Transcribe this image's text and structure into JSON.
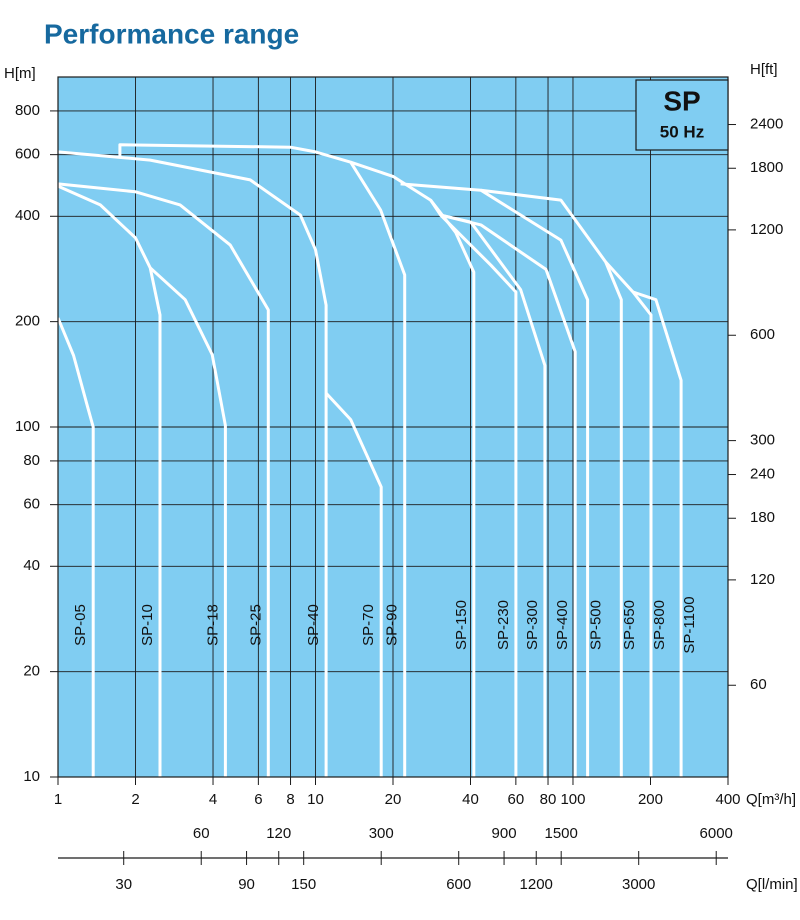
{
  "chart_data": {
    "type": "line",
    "title": "Performance range",
    "badge": {
      "title": "SP",
      "subtitle": "50 Hz"
    },
    "xlabel": "Q[m³/h]",
    "ylabel": "H[m]",
    "y2label": "H[ft]",
    "x2label": "Q[l/min]",
    "xscale": "log",
    "yscale": "log",
    "grid": true,
    "color": "#ffffff",
    "xlim": [
      1,
      400
    ],
    "xticks": [
      1,
      2,
      4,
      6,
      8,
      10,
      20,
      40,
      60,
      80,
      100,
      200,
      400
    ],
    "ylim": [
      10,
      1000
    ],
    "yticks": [
      10,
      20,
      40,
      60,
      80,
      100,
      200,
      400,
      600,
      800
    ],
    "y2lim": [
      32.81,
      3281
    ],
    "y2ticks": [
      60,
      120,
      180,
      240,
      300,
      600,
      1200,
      1800,
      2400
    ],
    "x2lim": [
      16.67,
      6667
    ],
    "x2ticks": [
      30,
      60,
      90,
      120,
      150,
      300,
      600,
      900,
      1200,
      1500,
      3000,
      6000
    ],
    "series": [
      {
        "name": "SP-05",
        "x": [
          1,
          1.15,
          1.3,
          1.37,
          1.37
        ],
        "values": [
          205,
          160,
          115,
          100,
          10
        ]
      },
      {
        "name": "SP-10",
        "x": [
          1,
          1.46,
          2,
          2.28,
          2.49,
          2.49
        ],
        "values": [
          488,
          431,
          347,
          285,
          209,
          10
        ]
      },
      {
        "name": "SP-18",
        "x": [
          2.28,
          3.12,
          3.97,
          4.47,
          4.47
        ],
        "values": [
          285,
          231,
          161,
          101,
          10
        ]
      },
      {
        "name": "SP-25",
        "x": [
          1,
          2,
          2.98,
          4.67,
          6.56,
          6.56
        ],
        "values": [
          495,
          470,
          431,
          331,
          216,
          10
        ]
      },
      {
        "name": "SP-40",
        "x": [
          1,
          2.28,
          5.58,
          8.74,
          10,
          11,
          11
        ],
        "values": [
          611,
          579,
          508,
          403,
          321,
          223,
          10
        ]
      },
      {
        "name": "SP-70",
        "x": [
          11,
          13.7,
          18,
          18
        ],
        "values": [
          125,
          105,
          67.4,
          10
        ]
      },
      {
        "name": "SP-90",
        "x": [
          1.74,
          1.74,
          8,
          10,
          13.7,
          17.9,
          22.2,
          22.2
        ],
        "values": [
          590,
          640,
          630,
          611,
          571,
          417,
          272,
          10
        ]
      },
      {
        "name": "SP-150",
        "x": [
          13.7,
          20,
          28,
          35,
          41.2,
          41.2
        ],
        "values": [
          571,
          520,
          445,
          360,
          277,
          10
        ]
      },
      {
        "name": "SP-230",
        "x": [
          28,
          30.6,
          48,
          60,
          60
        ],
        "values": [
          445,
          403,
          290,
          243,
          10
        ]
      },
      {
        "name": "SP-300",
        "x": [
          30.6,
          40.1,
          62.6,
          77.8,
          77.8
        ],
        "values": [
          403,
          385,
          247,
          150,
          10
        ]
      },
      {
        "name": "SP-400",
        "x": [
          30.6,
          43.9,
          78.6,
          102,
          102
        ],
        "values": [
          403,
          378,
          282,
          164,
          10
        ]
      },
      {
        "name": "SP-500",
        "x": [
          21.4,
          43.9,
          89.8,
          114,
          114
        ],
        "values": [
          495,
          475,
          342,
          231,
          10
        ]
      },
      {
        "name": "SP-650",
        "x": [
          43.9,
          89.8,
          134,
          154,
          154
        ],
        "values": [
          475,
          445,
          296,
          231,
          10
        ]
      },
      {
        "name": "SP-800",
        "x": [
          134,
          171,
          201,
          201
        ],
        "values": [
          296,
          243,
          209,
          10
        ]
      },
      {
        "name": "SP-1100",
        "x": [
          171,
          210,
          263,
          263
        ],
        "values": [
          243,
          231,
          136,
          10
        ]
      }
    ]
  }
}
